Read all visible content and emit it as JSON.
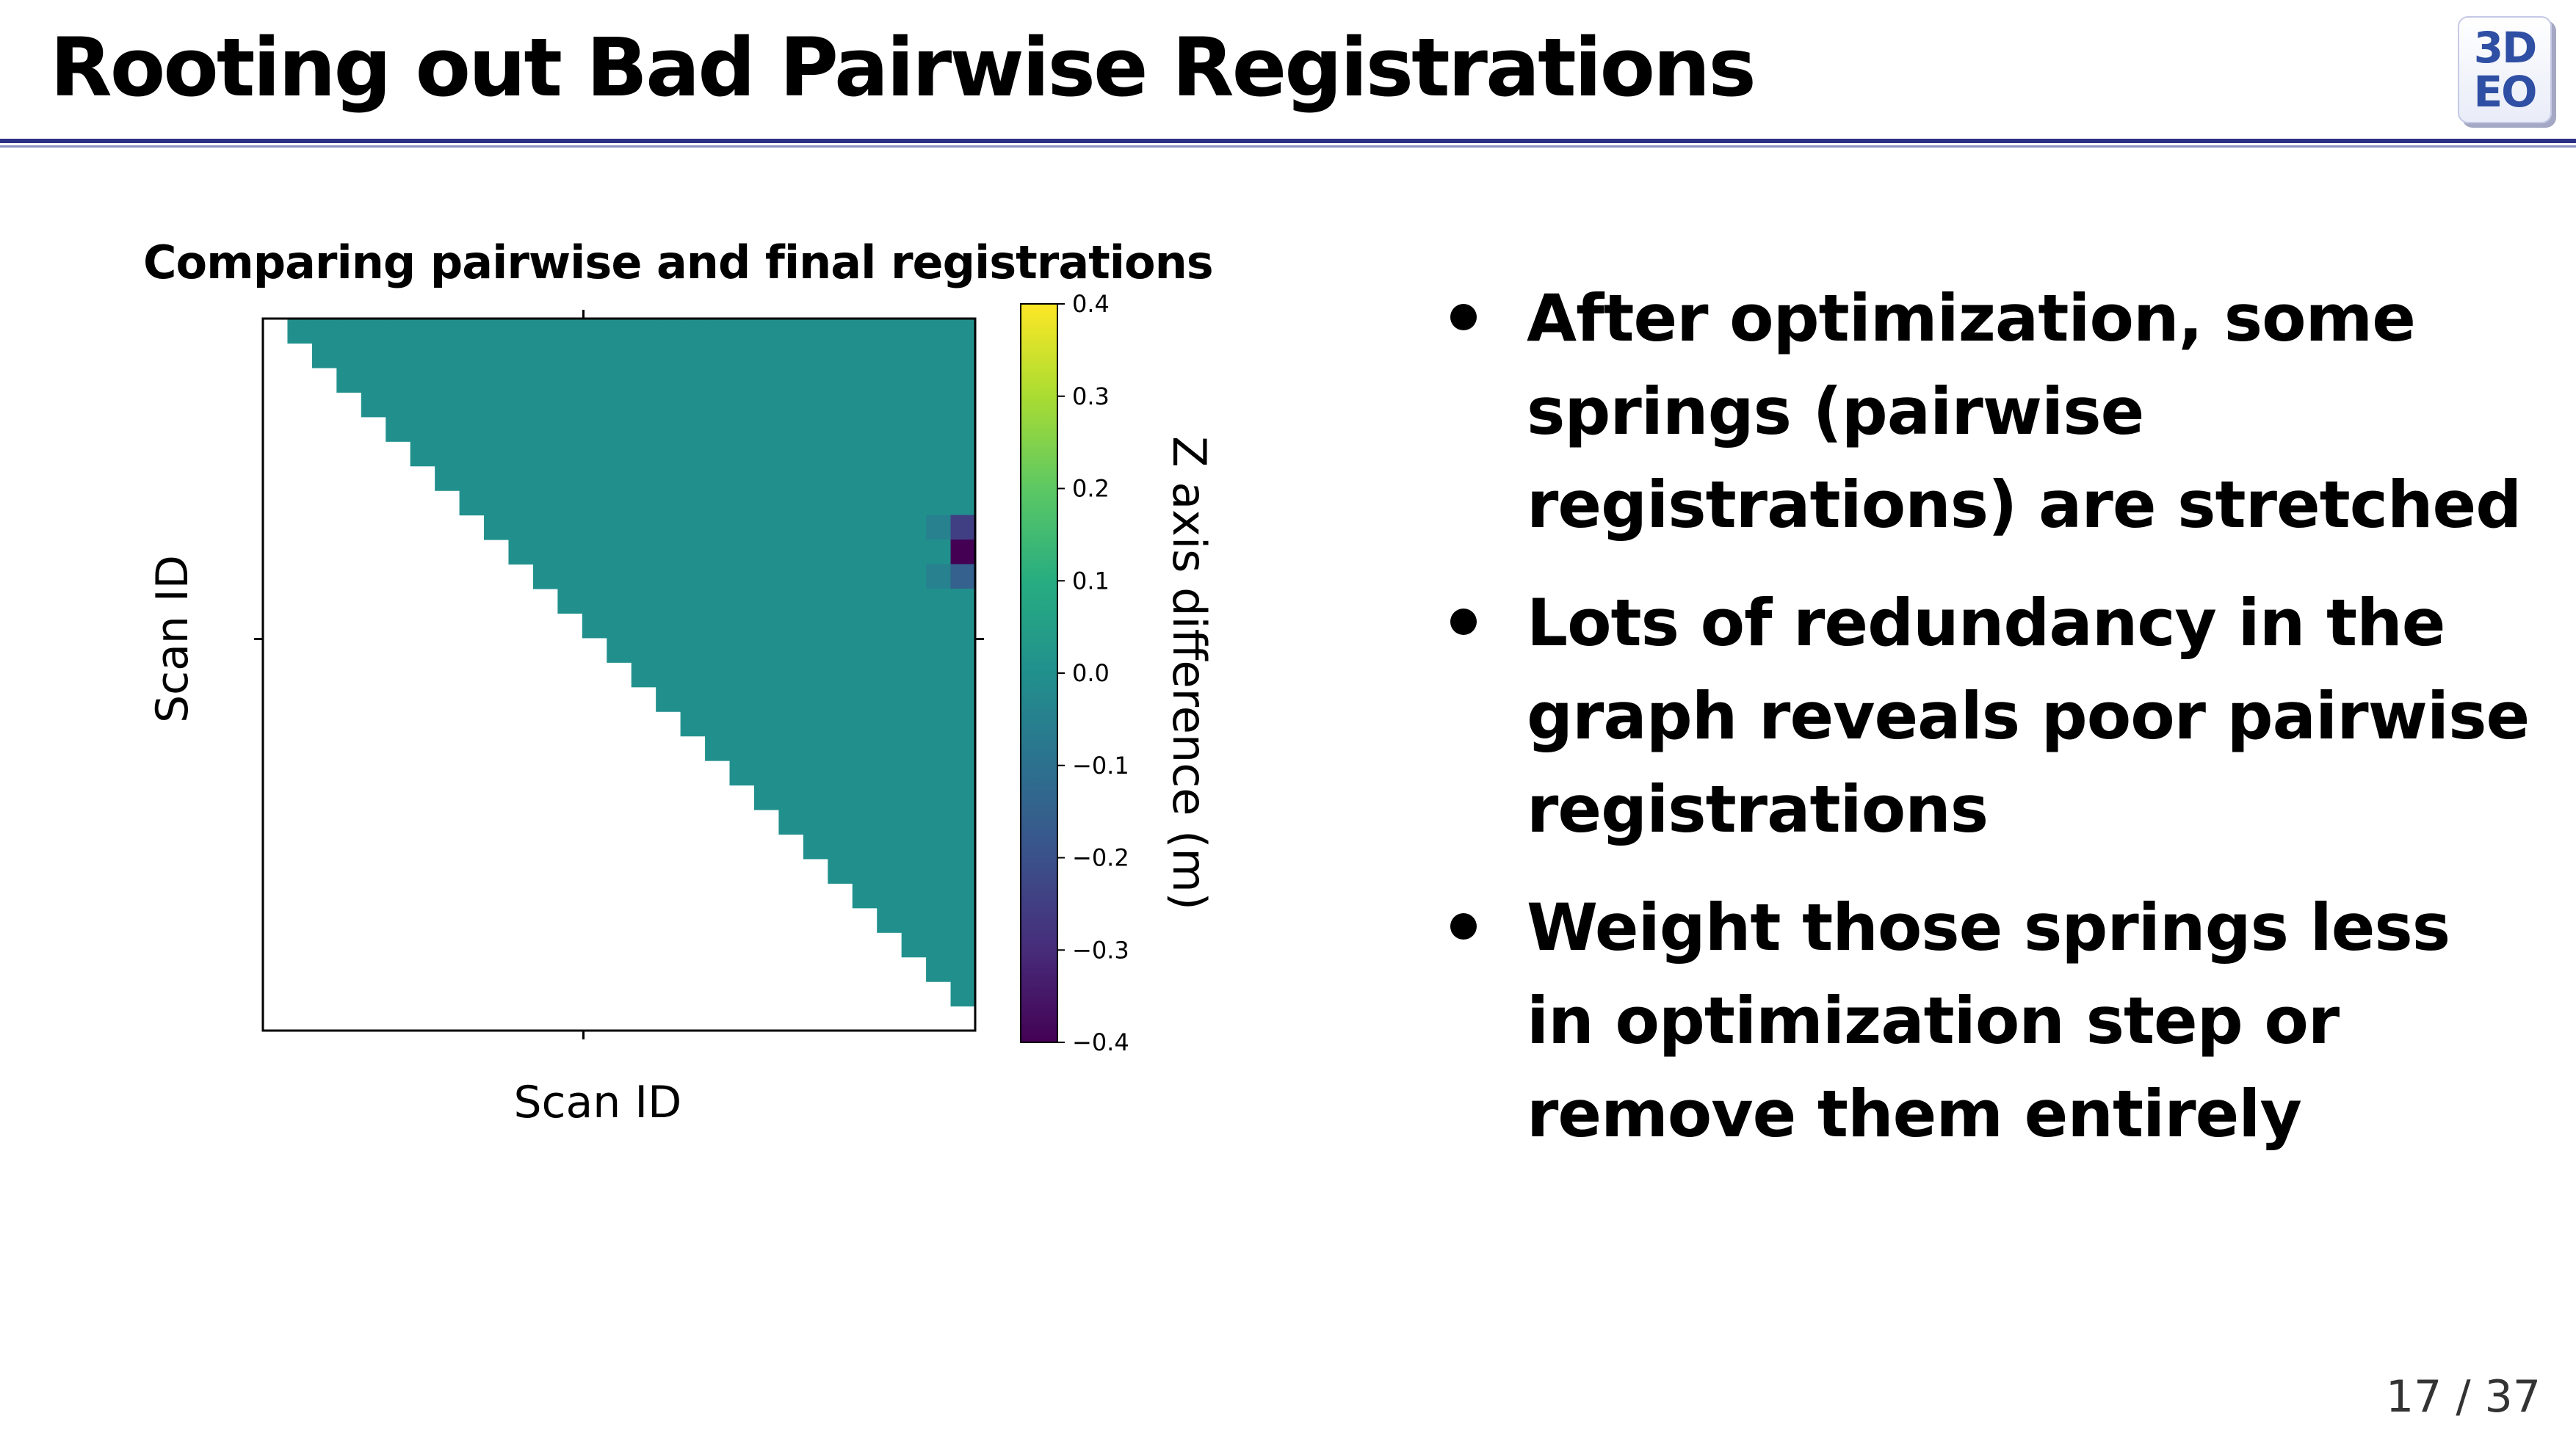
{
  "slide": {
    "title": "Rooting out Bad Pairwise Registrations",
    "logo_line1": "3D",
    "logo_line2": "EO",
    "page_number": "17 / 37"
  },
  "bullets": [
    "After optimization, some springs (pairwise registrations) are stretched",
    "Lots of redundancy in the graph reveals poor pairwise registrations",
    "Weight those springs less in optimization step or remove them entirely"
  ],
  "colors": {
    "accent_rule": "#2b2f86",
    "logo_text": "#2e4fa3",
    "colormap": "viridis"
  },
  "chart_data": {
    "type": "heatmap",
    "title": "Comparing pairwise and final registrations",
    "xlabel": "Scan ID",
    "ylabel": "Scan ID",
    "colorbar_label": "Z axis difference (m)",
    "colorbar_ticks": [
      "0.4",
      "0.3",
      "0.2",
      "0.1",
      "0.0",
      "−0.1",
      "−0.2",
      "−0.3",
      "−0.4"
    ],
    "vmin": -0.4,
    "vmax": 0.4,
    "grid_size": 29,
    "filled_region": "upper triangle (column > row)",
    "baseline_value": 0.0,
    "outliers": [
      {
        "row": 8,
        "col": 28,
        "value": -0.25
      },
      {
        "row": 9,
        "col": 28,
        "value": -0.4
      },
      {
        "row": 10,
        "col": 28,
        "value": -0.15
      },
      {
        "row": 8,
        "col": 27,
        "value": -0.05
      },
      {
        "row": 10,
        "col": 27,
        "value": -0.05
      }
    ]
  }
}
